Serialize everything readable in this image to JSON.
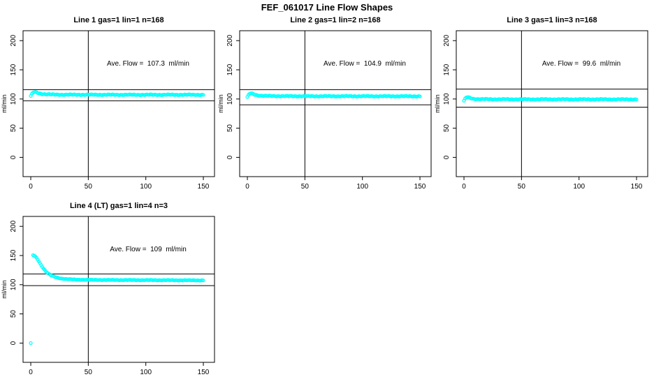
{
  "title": "FEF_061017  Line Flow Shapes",
  "colors": {
    "points": "#00FFFF",
    "axis": "#000000",
    "reference_lines": "#000000",
    "background": "#FFFFFF"
  },
  "chart_data": [
    {
      "type": "scatter",
      "title": "Line 1 gas=1 lin=1 n=168",
      "gas": 1,
      "lin": 1,
      "n": 168,
      "annotation": "Ave. Flow =  107.3  ml/min",
      "avg_flow_ml_min": 107.3,
      "xlabel": "",
      "ylabel": "ml/min",
      "x_ticks": [
        0,
        50,
        100,
        150
      ],
      "y_ticks": [
        0,
        50,
        100,
        150,
        200
      ],
      "xlim": [
        -6.7,
        159.7
      ],
      "ylim": [
        -33,
        217
      ],
      "grid": false,
      "hlines": [
        116,
        97
      ],
      "vline": 50,
      "marker": "open-circle",
      "jitter": 0.8,
      "curve_breakpoints": [
        [
          0,
          105
        ],
        [
          1,
          108.5
        ],
        [
          2,
          110.8
        ],
        [
          3,
          112
        ],
        [
          4,
          111.8
        ],
        [
          5,
          111.2
        ],
        [
          6,
          110.6
        ],
        [
          8,
          109.5
        ],
        [
          10,
          108.8
        ],
        [
          13,
          108.2
        ],
        [
          18,
          107.8
        ],
        [
          25,
          107.5
        ],
        [
          40,
          107.4
        ],
        [
          70,
          107.3
        ],
        [
          110,
          107.3
        ],
        [
          150,
          107.3
        ]
      ],
      "extra_points": []
    },
    {
      "type": "scatter",
      "title": "Line 2 gas=1 lin=2 n=168",
      "gas": 1,
      "lin": 2,
      "n": 168,
      "annotation": "Ave. Flow =  104.9  ml/min",
      "avg_flow_ml_min": 104.9,
      "xlabel": "",
      "ylabel": "ml/min",
      "x_ticks": [
        0,
        50,
        100,
        150
      ],
      "y_ticks": [
        0,
        50,
        100,
        150,
        200
      ],
      "xlim": [
        -6.7,
        159.7
      ],
      "ylim": [
        -33,
        217
      ],
      "grid": false,
      "hlines": [
        116,
        90
      ],
      "vline": 50,
      "marker": "open-circle",
      "jitter": 0.8,
      "curve_breakpoints": [
        [
          0,
          103.2
        ],
        [
          1,
          106.5
        ],
        [
          2,
          108.8
        ],
        [
          3,
          109.8
        ],
        [
          4,
          109.4
        ],
        [
          5,
          108.6
        ],
        [
          7,
          107.2
        ],
        [
          9,
          106.3
        ],
        [
          12,
          105.7
        ],
        [
          16,
          105.3
        ],
        [
          22,
          105.1
        ],
        [
          35,
          104.9
        ],
        [
          60,
          104.8
        ],
        [
          100,
          104.8
        ],
        [
          150,
          104.7
        ]
      ],
      "extra_points": []
    },
    {
      "type": "scatter",
      "title": "Line 3 gas=1 lin=3 n=168",
      "gas": 1,
      "lin": 3,
      "n": 168,
      "annotation": "Ave. Flow =  99.6  ml/min",
      "avg_flow_ml_min": 99.6,
      "xlabel": "",
      "ylabel": "ml/min",
      "x_ticks": [
        0,
        50,
        100,
        150
      ],
      "y_ticks": [
        0,
        50,
        100,
        150,
        200
      ],
      "xlim": [
        -6.7,
        159.7
      ],
      "ylim": [
        -33,
        217
      ],
      "grid": false,
      "hlines": [
        117,
        86
      ],
      "vline": 50,
      "marker": "open-circle",
      "jitter": 0.8,
      "curve_breakpoints": [
        [
          0,
          96.8
        ],
        [
          1,
          100.2
        ],
        [
          2,
          102.4
        ],
        [
          3,
          103.2
        ],
        [
          4,
          102.8
        ],
        [
          5,
          102
        ],
        [
          7,
          100.9
        ],
        [
          9,
          100.2
        ],
        [
          12,
          99.9
        ],
        [
          16,
          99.7
        ],
        [
          25,
          99.6
        ],
        [
          50,
          99.5
        ],
        [
          100,
          99.5
        ],
        [
          150,
          99.4
        ]
      ],
      "extra_points": []
    },
    {
      "type": "scatter",
      "title": "Line 4 (LT) gas=1 lin=4 n=3",
      "gas": 1,
      "lin": 4,
      "n": 3,
      "annotation": "Ave. Flow =  109  ml/min",
      "avg_flow_ml_min": 109,
      "xlabel": "",
      "ylabel": "ml/min",
      "x_ticks": [
        0,
        50,
        100,
        150
      ],
      "y_ticks": [
        0,
        50,
        100,
        150,
        200
      ],
      "xlim": [
        -6.7,
        159.7
      ],
      "ylim": [
        -33,
        217
      ],
      "grid": false,
      "hlines": [
        118.5,
        98.5
      ],
      "vline": 50,
      "marker": "open-circle",
      "jitter": 0.5,
      "curve_breakpoints": [
        [
          2,
          150.5
        ],
        [
          3,
          149.8
        ],
        [
          4,
          148.2
        ],
        [
          5,
          146
        ],
        [
          6,
          143.2
        ],
        [
          7,
          140.2
        ],
        [
          8,
          137
        ],
        [
          9,
          133.8
        ],
        [
          10,
          130.8
        ],
        [
          11,
          128
        ],
        [
          12,
          125.5
        ],
        [
          13,
          123.2
        ],
        [
          14,
          121.2
        ],
        [
          15,
          119.5
        ],
        [
          16,
          118
        ],
        [
          17,
          116.8
        ],
        [
          18,
          115.7
        ],
        [
          19,
          114.8
        ],
        [
          20,
          114
        ],
        [
          22,
          112.7
        ],
        [
          24,
          111.7
        ],
        [
          26,
          110.9
        ],
        [
          28,
          110.3
        ],
        [
          30,
          109.9
        ],
        [
          35,
          109.2
        ],
        [
          40,
          108.8
        ],
        [
          50,
          108.4
        ],
        [
          70,
          108.1
        ],
        [
          100,
          107.9
        ],
        [
          150,
          107.5
        ]
      ],
      "extra_points": [
        [
          0,
          0
        ]
      ]
    }
  ]
}
